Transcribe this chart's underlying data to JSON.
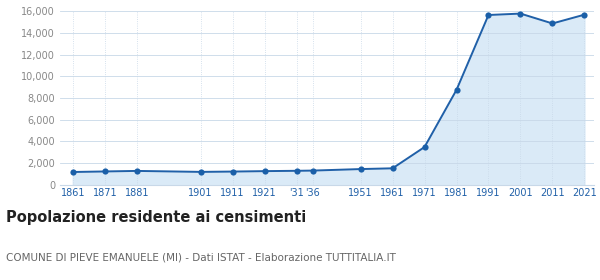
{
  "years": [
    1861,
    1871,
    1881,
    1901,
    1911,
    1921,
    1931,
    1936,
    1951,
    1961,
    1971,
    1981,
    1991,
    2001,
    2011,
    2021
  ],
  "population": [
    1180,
    1230,
    1280,
    1190,
    1220,
    1260,
    1290,
    1310,
    1450,
    1520,
    3480,
    8750,
    15650,
    15780,
    14870,
    15680
  ],
  "line_color": "#2060a8",
  "fill_color": "#daeaf7",
  "marker_color": "#1a5fa8",
  "background_color": "#ffffff",
  "grid_color": "#c8d8e8",
  "title": "Popolazione residente ai censimenti",
  "subtitle": "COMUNE DI PIEVE EMANUELE (MI) - Dati ISTAT - Elaborazione TUTTITALIA.IT",
  "title_fontsize": 10.5,
  "subtitle_fontsize": 7.5,
  "ylim": [
    0,
    16000
  ],
  "yticks": [
    0,
    2000,
    4000,
    6000,
    8000,
    10000,
    12000,
    14000,
    16000
  ],
  "xtick_positions": [
    1861,
    1871,
    1881,
    1901,
    1911,
    1921,
    1931,
    1936,
    1951,
    1961,
    1971,
    1981,
    1991,
    2001,
    2011,
    2021
  ],
  "xtick_labels": [
    "1861",
    "1871",
    "1881",
    "1901",
    "1911",
    "1921",
    "'31",
    "'36",
    "1951",
    "1961",
    "1971",
    "1981",
    "1991",
    "2001",
    "2011",
    "2021"
  ]
}
